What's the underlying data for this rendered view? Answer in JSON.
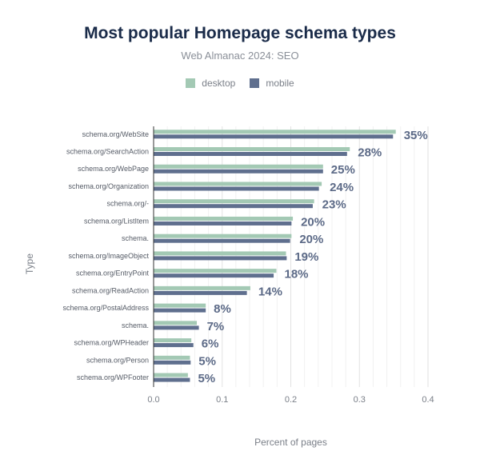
{
  "chart_data": {
    "type": "bar",
    "orientation": "horizontal",
    "title": "Most popular Homepage schema types",
    "subtitle": "Web Almanac 2024: SEO",
    "xlabel": "Percent of pages",
    "ylabel": "Type",
    "xlim": [
      0,
      0.4
    ],
    "xticks": [
      "0.0",
      "0.1",
      "0.2",
      "0.3",
      "0.4"
    ],
    "grid": true,
    "legend_position": "top-center",
    "colors": {
      "desktop": "#a3c9b4",
      "mobile": "#5f6f8e"
    },
    "categories": [
      "schema.org/WebSite",
      "schema.org/SearchAction",
      "schema.org/WebPage",
      "schema.org/Organization",
      "schema.org/-",
      "schema.org/ListItem",
      "schema.",
      "schema.org/ImageObject",
      "schema.org/EntryPoint",
      "schema.org/ReadAction",
      "schema.org/PostalAddress",
      "schema.",
      "schema.org/WPHeader",
      "schema.org/Person",
      "schema.org/WPFooter"
    ],
    "series": [
      {
        "name": "desktop",
        "values": [
          0.353,
          0.286,
          0.247,
          0.245,
          0.234,
          0.203,
          0.201,
          0.193,
          0.179,
          0.141,
          0.076,
          0.063,
          0.055,
          0.053,
          0.05
        ]
      },
      {
        "name": "mobile",
        "values": [
          0.349,
          0.282,
          0.247,
          0.241,
          0.232,
          0.201,
          0.199,
          0.194,
          0.175,
          0.136,
          0.076,
          0.066,
          0.058,
          0.054,
          0.053
        ]
      }
    ],
    "data_labels": [
      "35%",
      "28%",
      "25%",
      "24%",
      "23%",
      "20%",
      "20%",
      "19%",
      "18%",
      "14%",
      "8%",
      "7%",
      "6%",
      "5%",
      "5%"
    ]
  }
}
